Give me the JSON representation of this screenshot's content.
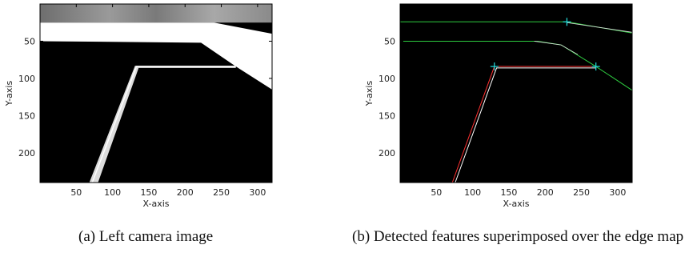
{
  "figures": [
    {
      "x_label": "X-axis",
      "y_label": "Y-axis",
      "xlim": [
        0,
        320
      ],
      "ylim": [
        0,
        240
      ],
      "xticks": [
        50,
        100,
        150,
        200,
        250,
        300
      ],
      "yticks": [
        50,
        100,
        150,
        200
      ],
      "caption": "(a) Left camera image"
    },
    {
      "x_label": "X-axis",
      "y_label": "Y-axis",
      "xlim": [
        0,
        320
      ],
      "ylim": [
        0,
        240
      ],
      "xticks": [
        50,
        100,
        150,
        200,
        250,
        300
      ],
      "yticks": [
        50,
        100,
        150,
        200
      ],
      "caption": "(b) Detected features superimposed over the edge map"
    }
  ]
}
